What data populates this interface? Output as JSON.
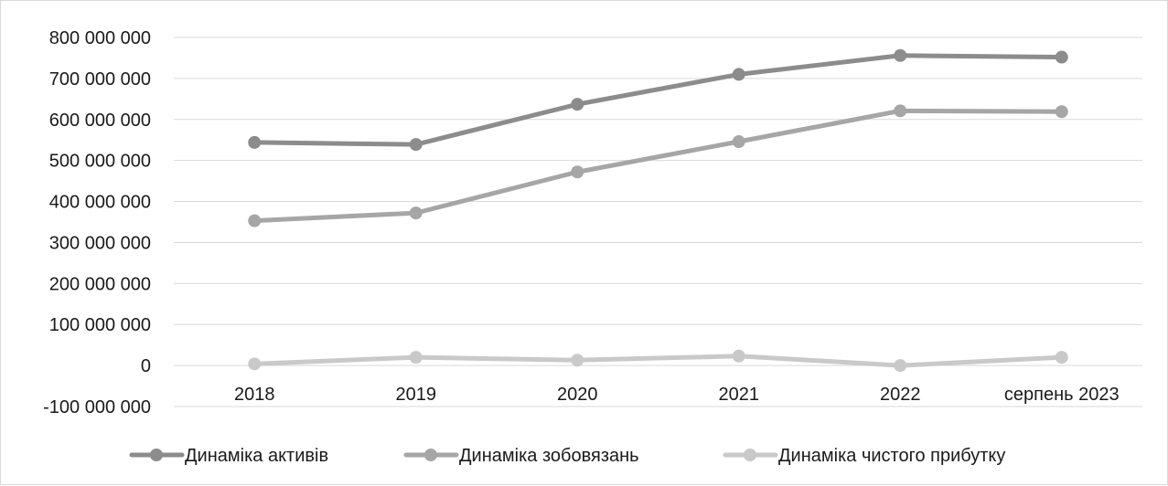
{
  "chart_data": {
    "type": "line",
    "title": "",
    "xlabel": "",
    "ylabel": "",
    "categories": [
      "2018",
      "2019",
      "2020",
      "2021",
      "2022",
      "серпень 2023"
    ],
    "ylim": [
      -100000000,
      800000000
    ],
    "y_ticks": [
      800000000,
      700000000,
      600000000,
      500000000,
      400000000,
      300000000,
      200000000,
      100000000,
      0,
      -100000000
    ],
    "y_tick_labels": [
      "800 000 000",
      "700 000 000",
      "600 000 000",
      "500 000 000",
      "400 000 000",
      "300 000 000",
      "200 000 000",
      "100 000 000",
      "0",
      "-100 000 000"
    ],
    "grid": true,
    "legend_position": "bottom",
    "series": [
      {
        "name": "Динаміка активів",
        "color": "#8c8c8c",
        "values": [
          544000000,
          539000000,
          637000000,
          710000000,
          756000000,
          752000000
        ]
      },
      {
        "name": "Динаміка зобовязань",
        "color": "#a6a6a6",
        "values": [
          353000000,
          372000000,
          472000000,
          546000000,
          621000000,
          619000000
        ]
      },
      {
        "name": "Динаміка чистого прибутку",
        "color": "#c9c9c9",
        "values": [
          4000000,
          20000000,
          13000000,
          23000000,
          0,
          20000000
        ]
      }
    ]
  }
}
